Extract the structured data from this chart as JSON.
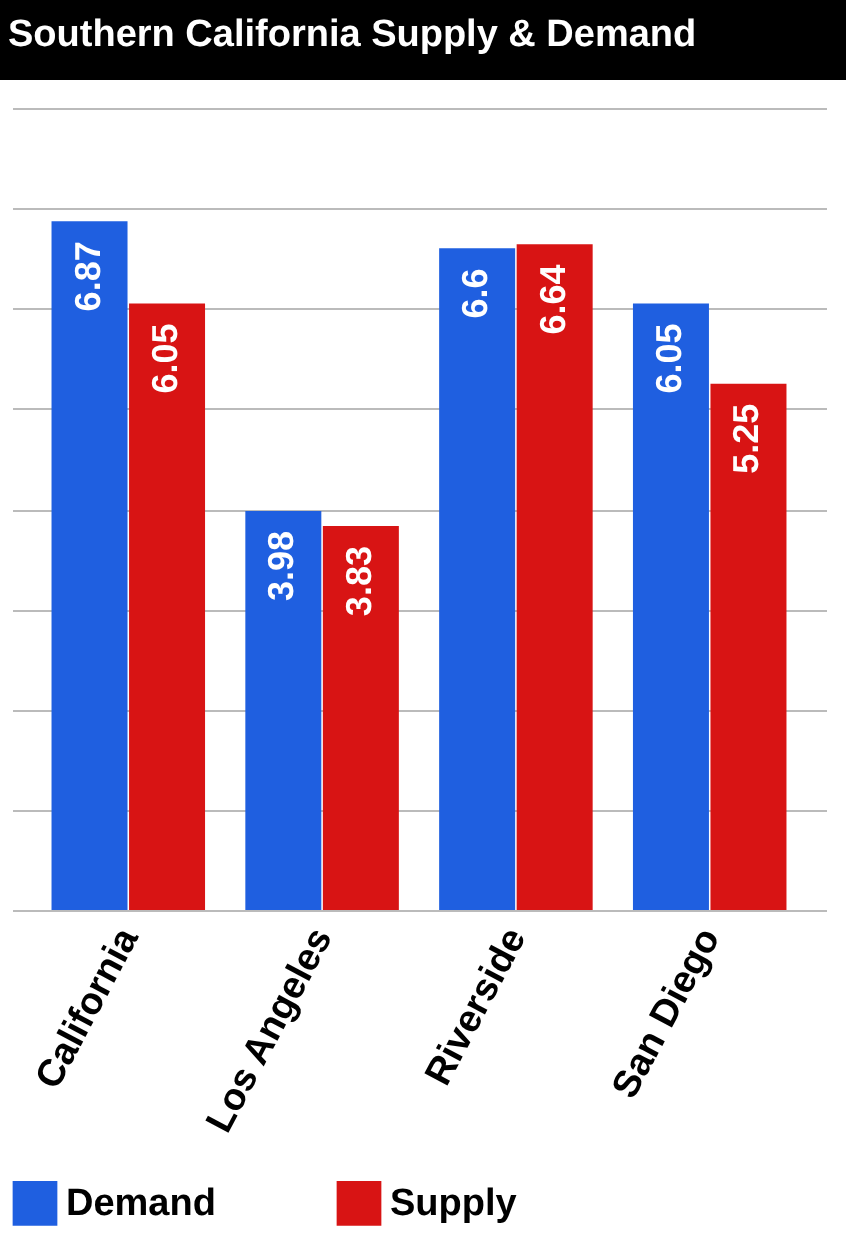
{
  "chart_data": {
    "type": "bar",
    "title": "Southern California Supply & Demand",
    "categories": [
      "California",
      "Los Angeles",
      "Riverside",
      "San Diego"
    ],
    "series": [
      {
        "name": "Demand",
        "color": "#1f5fe0",
        "values": [
          6.87,
          3.98,
          6.6,
          6.05
        ]
      },
      {
        "name": "Supply",
        "color": "#d81414",
        "values": [
          6.05,
          3.83,
          6.64,
          5.25
        ]
      }
    ],
    "ylim": [
      0,
      8
    ],
    "yticks": [
      {
        "value": 0,
        "label": null
      },
      {
        "value": 1,
        "label": null
      },
      {
        "value": 2,
        "label": null
      },
      {
        "value": 3,
        "label": null
      },
      {
        "value": 4,
        "label": null
      },
      {
        "value": 5,
        "label": null
      },
      {
        "value": 6,
        "label": null
      },
      {
        "value": 7,
        "label": null
      },
      {
        "value": 8,
        "label": null
      }
    ],
    "grid": "y",
    "data_labels": true,
    "legend": "bottom"
  }
}
